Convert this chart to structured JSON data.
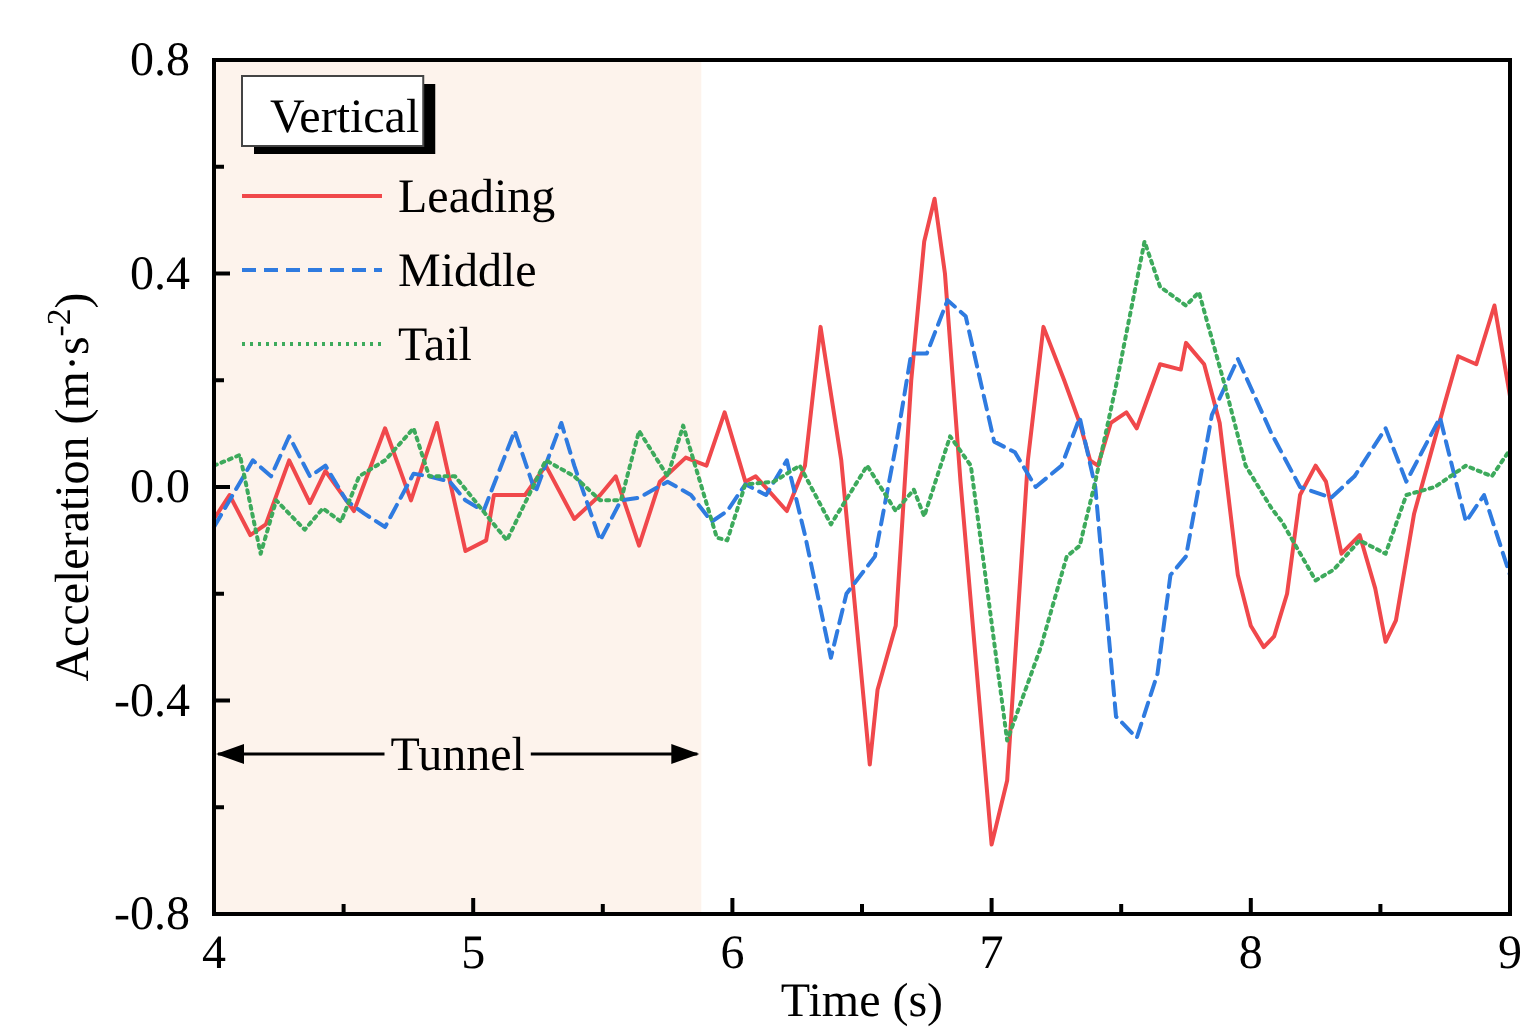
{
  "chart_data": {
    "type": "line",
    "xlabel": "Time (s)",
    "ylabel": "Acceleration (m·s$^{-2}$)",
    "legend_title": "Vertical",
    "legend": "top left",
    "xlim": [
      4,
      9
    ],
    "xticks": [
      4,
      {
        "value": 4.5,
        "label": null
      },
      5,
      {
        "value": 5.5,
        "label": null
      },
      6,
      {
        "value": 6.5,
        "label": null
      },
      7,
      {
        "value": 7.5,
        "label": null
      },
      8,
      {
        "value": 8.5,
        "label": null
      },
      9
    ],
    "ylim": [
      -0.8,
      0.8
    ],
    "yticks": [
      -0.8,
      {
        "value": -0.6,
        "label": null
      },
      -0.4,
      {
        "value": -0.2,
        "label": null
      },
      {
        "value": 0,
        "label": "0.0"
      },
      {
        "value": 0.2,
        "label": null
      },
      0.4,
      {
        "value": 0.6,
        "label": null
      },
      0.8
    ],
    "bands": [
      {
        "axis": "x",
        "from": 4,
        "to": 5.88,
        "label": "Tunnel",
        "color": "#fdf3ec"
      }
    ],
    "series": [
      {
        "name": "Leading",
        "color": "#f0484b",
        "line_style": "solid",
        "x": [
          4.0,
          4.06,
          4.14,
          4.2,
          4.29,
          4.37,
          4.43,
          4.54,
          4.66,
          4.76,
          4.86,
          4.97,
          5.05,
          5.08,
          5.2,
          5.28,
          5.39,
          5.49,
          5.55,
          5.64,
          5.72,
          5.82,
          5.9,
          5.97,
          6.05,
          6.09,
          6.21,
          6.28,
          6.34,
          6.42,
          6.53,
          6.56,
          6.63,
          6.69,
          6.74,
          6.78,
          6.82,
          6.88,
          7.0,
          7.06,
          7.14,
          7.2,
          7.28,
          7.34,
          7.38,
          7.41,
          7.46,
          7.52,
          7.56,
          7.65,
          7.73,
          7.75,
          7.82,
          7.88,
          7.95,
          8.0,
          8.05,
          8.09,
          8.14,
          8.19,
          8.25,
          8.29,
          8.35,
          8.42,
          8.48,
          8.52,
          8.56,
          8.63,
          8.75,
          8.8,
          8.87,
          8.94,
          9.0
        ],
        "values": [
          -0.06,
          -0.015,
          -0.09,
          -0.07,
          0.05,
          -0.03,
          0.03,
          -0.045,
          0.11,
          -0.025,
          0.12,
          -0.12,
          -0.1,
          -0.015,
          -0.015,
          0.04,
          -0.06,
          -0.015,
          0.02,
          -0.11,
          0.01,
          0.055,
          0.04,
          0.14,
          0.01,
          0.02,
          -0.045,
          0.04,
          0.3,
          0.05,
          -0.52,
          -0.38,
          -0.26,
          0.2,
          0.46,
          0.54,
          0.4,
          0.01,
          -0.67,
          -0.55,
          0.05,
          0.3,
          0.2,
          0.12,
          0.05,
          0.04,
          0.12,
          0.14,
          0.11,
          0.23,
          0.22,
          0.27,
          0.23,
          0.12,
          -0.165,
          -0.26,
          -0.3,
          -0.28,
          -0.2,
          -0.015,
          0.04,
          0.01,
          -0.125,
          -0.09,
          -0.19,
          -0.29,
          -0.25,
          -0.05,
          0.16,
          0.245,
          0.23,
          0.34,
          0.17
        ]
      },
      {
        "name": "Middle",
        "color": "#2f7be0",
        "line_style": "dashed",
        "x": [
          4.0,
          4.15,
          4.22,
          4.29,
          4.37,
          4.43,
          4.51,
          4.58,
          4.66,
          4.77,
          4.83,
          4.91,
          4.97,
          5.04,
          5.16,
          5.24,
          5.34,
          5.39,
          5.49,
          5.57,
          5.64,
          5.75,
          5.84,
          5.92,
          5.98,
          6.05,
          6.13,
          6.21,
          6.28,
          6.38,
          6.44,
          6.55,
          6.63,
          6.69,
          6.75,
          6.83,
          6.9,
          7.01,
          7.09,
          7.17,
          7.27,
          7.34,
          7.4,
          7.48,
          7.56,
          7.64,
          7.69,
          7.75,
          7.85,
          7.95,
          8.08,
          8.19,
          8.31,
          8.4,
          8.52,
          8.6,
          8.73,
          8.83,
          8.9,
          9.0
        ],
        "values": [
          -0.075,
          0.05,
          0.02,
          0.095,
          0.02,
          0.04,
          -0.025,
          -0.05,
          -0.075,
          0.025,
          0.02,
          0.01,
          -0.025,
          -0.045,
          0.105,
          -0.01,
          0.12,
          0.04,
          -0.1,
          -0.025,
          -0.02,
          0.01,
          -0.015,
          -0.065,
          -0.045,
          0.005,
          -0.015,
          0.05,
          -0.09,
          -0.32,
          -0.2,
          -0.13,
          0.075,
          0.25,
          0.25,
          0.35,
          0.32,
          0.085,
          0.065,
          0,
          0.04,
          0.13,
          0,
          -0.43,
          -0.47,
          -0.35,
          -0.165,
          -0.13,
          0.135,
          0.24,
          0.1,
          0,
          -0.02,
          0.02,
          0.11,
          0.01,
          0.13,
          -0.065,
          -0.015,
          -0.165
        ]
      },
      {
        "name": "Tail",
        "color": "#3daa5c",
        "line_style": "dotted",
        "x": [
          4.0,
          4.1,
          4.18,
          4.24,
          4.35,
          4.42,
          4.49,
          4.56,
          4.66,
          4.77,
          4.83,
          4.93,
          5.03,
          5.13,
          5.28,
          5.39,
          5.49,
          5.57,
          5.64,
          5.75,
          5.81,
          5.94,
          5.98,
          6.05,
          6.16,
          6.26,
          6.38,
          6.52,
          6.63,
          6.7,
          6.74,
          6.84,
          6.92,
          7.06,
          7.19,
          7.29,
          7.34,
          7.4,
          7.48,
          7.59,
          7.65,
          7.75,
          7.8,
          7.9,
          7.98,
          8.08,
          8.12,
          8.25,
          8.32,
          8.42,
          8.52,
          8.6,
          8.71,
          8.83,
          8.93,
          9.0
        ],
        "values": [
          0.04,
          0.06,
          -0.125,
          -0.025,
          -0.08,
          -0.04,
          -0.065,
          0.02,
          0.05,
          0.11,
          0.02,
          0.02,
          -0.04,
          -0.1,
          0.05,
          0.02,
          -0.025,
          -0.025,
          0.105,
          0.02,
          0.115,
          -0.095,
          -0.1,
          0.005,
          0.01,
          0.04,
          -0.07,
          0.04,
          -0.045,
          -0.005,
          -0.055,
          0.095,
          0.04,
          -0.475,
          -0.3,
          -0.13,
          -0.11,
          0.01,
          0.19,
          0.46,
          0.375,
          0.34,
          0.365,
          0.19,
          0.04,
          -0.04,
          -0.065,
          -0.175,
          -0.155,
          -0.1,
          -0.125,
          -0.015,
          0,
          0.04,
          0.02,
          0.07
        ]
      }
    ]
  }
}
